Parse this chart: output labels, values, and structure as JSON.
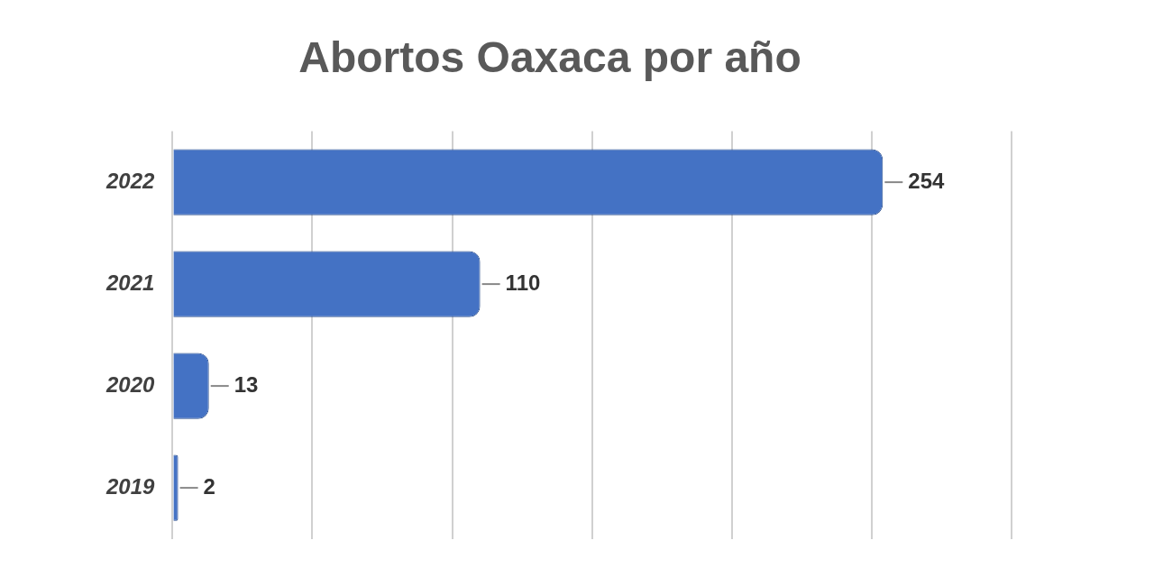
{
  "chart_data": {
    "type": "bar",
    "orientation": "horizontal",
    "title": "Abortos Oaxaca por año",
    "categories": [
      "2022",
      "2021",
      "2020",
      "2019"
    ],
    "values": [
      254,
      110,
      13,
      2
    ],
    "color": "#4472c4",
    "xlim": [
      0,
      300
    ],
    "xticks": [
      {
        "value": 0,
        "label": null
      },
      {
        "value": 50,
        "label": null
      },
      {
        "value": 100,
        "label": null
      },
      {
        "value": 150,
        "label": null
      },
      {
        "value": 200,
        "label": null
      },
      {
        "value": 250,
        "label": null
      },
      {
        "value": 300,
        "label": null
      }
    ],
    "tick_labels": "y",
    "grid": "x",
    "data_labels": true,
    "legend": false
  }
}
